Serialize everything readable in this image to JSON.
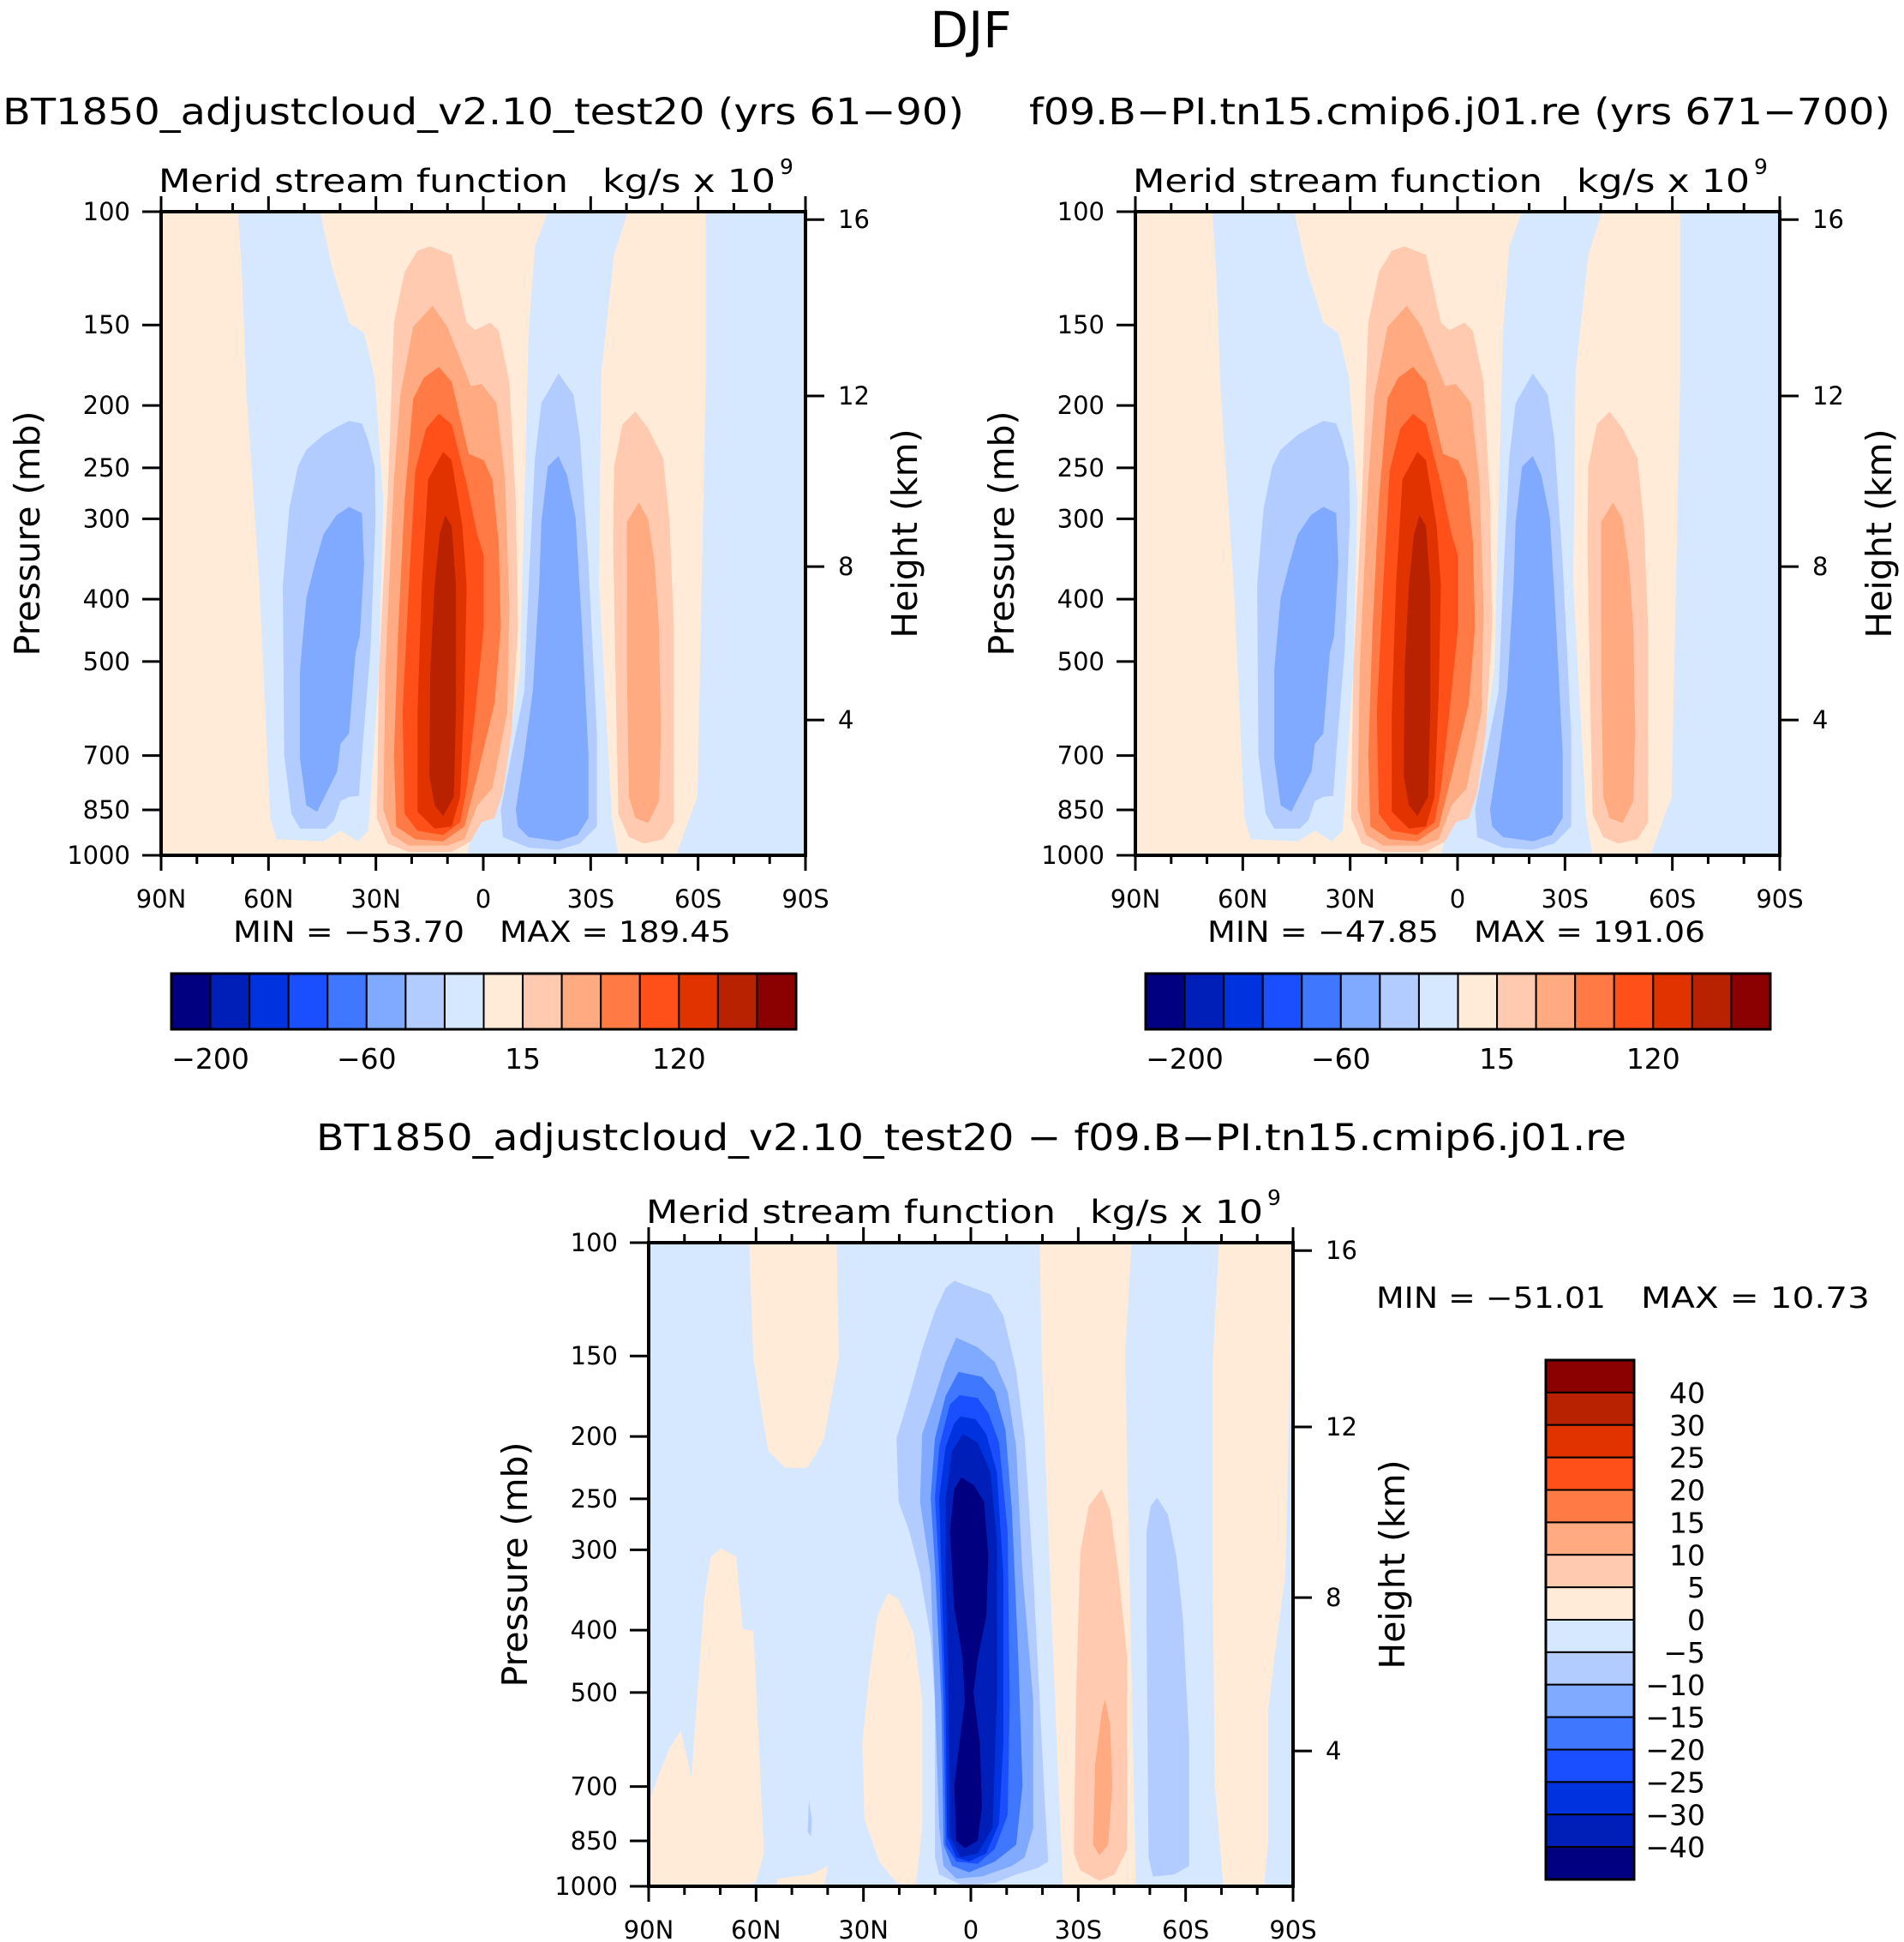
{
  "figure_title": "DJF",
  "colors": [
    "#000080",
    "#001fb8",
    "#0033e0",
    "#1a4fff",
    "#4077ff",
    "#80aaff",
    "#b3ccff",
    "#d6e8ff",
    "#ffebd8",
    "#ffcab0",
    "#ffaa80",
    "#ff7a45",
    "#ff5019",
    "#e03300",
    "#b82200",
    "#8b0000"
  ],
  "diff_title": "BT1850_adjustcloud_v2.10_test20 − f09.B−PI.tn15.cmip6.j01.re",
  "chart_data": [
    {
      "type": "contour",
      "title": "BT1850_adjustcloud_v2.10_test20 (yrs 61−90)",
      "subtitle": "Merid stream function",
      "units": "kg/s x 10",
      "units_exp": "9",
      "min_label": "MIN = −53.70",
      "max_label": "MAX = 189.45",
      "min": -53.7,
      "max": 189.45,
      "xticks": {
        "values": [
          90,
          60,
          30,
          0,
          -30,
          -60,
          -90
        ],
        "labels": [
          "90N",
          "60N",
          "30N",
          "0",
          "30S",
          "60S",
          "90S"
        ]
      },
      "xlim": [
        90,
        -90
      ],
      "ylabel": "Pressure (mb)",
      "yticks": {
        "values": [
          100,
          150,
          200,
          250,
          300,
          400,
          500,
          700,
          850,
          1000
        ],
        "labels": [
          "100",
          "150",
          "200",
          "250",
          "300",
          "400",
          "500",
          "700",
          "850",
          "1000"
        ]
      },
      "ylim": [
        1000,
        100
      ],
      "yscale": "log",
      "y2label": "Height (km)",
      "y2ticks": {
        "values": [
          4,
          8,
          12,
          16
        ],
        "labels": [
          "4",
          "8",
          "12",
          "16"
        ]
      },
      "colorbar_labels": [
        "−200",
        "−60",
        "15",
        "120"
      ]
    },
    {
      "type": "contour",
      "title": "f09.B−PI.tn15.cmip6.j01.re (yrs 671−700)",
      "subtitle": "Merid stream function",
      "units": "kg/s x 10",
      "units_exp": "9",
      "min_label": "MIN = −47.85",
      "max_label": "MAX = 191.06",
      "min": -47.85,
      "max": 191.06,
      "xticks": {
        "values": [
          90,
          60,
          30,
          0,
          -30,
          -60,
          -90
        ],
        "labels": [
          "90N",
          "60N",
          "30N",
          "0",
          "30S",
          "60S",
          "90S"
        ]
      },
      "xlim": [
        90,
        -90
      ],
      "ylabel": "Pressure (mb)",
      "yticks": {
        "values": [
          100,
          150,
          200,
          250,
          300,
          400,
          500,
          700,
          850,
          1000
        ],
        "labels": [
          "100",
          "150",
          "200",
          "250",
          "300",
          "400",
          "500",
          "700",
          "850",
          "1000"
        ]
      },
      "ylim": [
        1000,
        100
      ],
      "yscale": "log",
      "y2label": "Height (km)",
      "y2ticks": {
        "values": [
          4,
          8,
          12,
          16
        ],
        "labels": [
          "4",
          "8",
          "12",
          "16"
        ]
      },
      "colorbar_labels": [
        "−200",
        "−60",
        "15",
        "120"
      ]
    },
    {
      "type": "contour",
      "title": "",
      "subtitle": "Merid stream function",
      "units": "kg/s x 10",
      "units_exp": "9",
      "min_label": "MIN = −51.01",
      "max_label": "MAX =   10.73",
      "min": -51.01,
      "max": 10.73,
      "xticks": {
        "values": [
          90,
          60,
          30,
          0,
          -30,
          -60,
          -90
        ],
        "labels": [
          "90N",
          "60N",
          "30N",
          "0",
          "30S",
          "60S",
          "90S"
        ]
      },
      "xlim": [
        90,
        -90
      ],
      "ylabel": "Pressure (mb)",
      "yticks": {
        "values": [
          100,
          150,
          200,
          250,
          300,
          400,
          500,
          700,
          850,
          1000
        ],
        "labels": [
          "100",
          "150",
          "200",
          "250",
          "300",
          "400",
          "500",
          "700",
          "850",
          "1000"
        ]
      },
      "ylim": [
        1000,
        100
      ],
      "yscale": "log",
      "y2label": "Height (km)",
      "y2ticks": {
        "values": [
          4,
          8,
          12,
          16
        ],
        "labels": [
          "4",
          "8",
          "12",
          "16"
        ]
      },
      "colorbar_labels": [
        "40",
        "30",
        "25",
        "20",
        "15",
        "10",
        "5",
        "0",
        "−5",
        "−10",
        "−15",
        "−20",
        "−25",
        "−30",
        "−40"
      ]
    }
  ]
}
